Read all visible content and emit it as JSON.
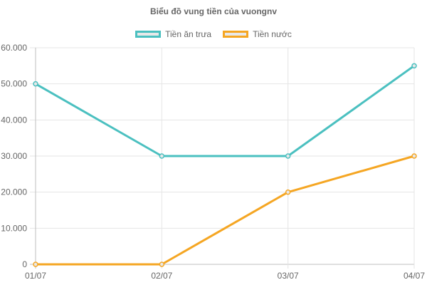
{
  "chart_data": {
    "type": "line",
    "title": "Biểu đồ vung tiền của vuongnv",
    "categories": [
      "01/07",
      "02/07",
      "03/07",
      "04/07"
    ],
    "series": [
      {
        "name": "Tiền ăn trưa",
        "values": [
          50000,
          30000,
          30000,
          55000
        ],
        "color": "#4bc0c0"
      },
      {
        "name": "Tiền nước",
        "values": [
          0,
          0,
          20000,
          30000
        ],
        "color": "#f5a623"
      }
    ],
    "ylim": [
      0,
      60000
    ],
    "yticks": [
      "0",
      "10.000",
      "20.000",
      "30.000",
      "40.000",
      "50.000",
      "60.000"
    ],
    "grid": true,
    "legend_position": "top"
  }
}
